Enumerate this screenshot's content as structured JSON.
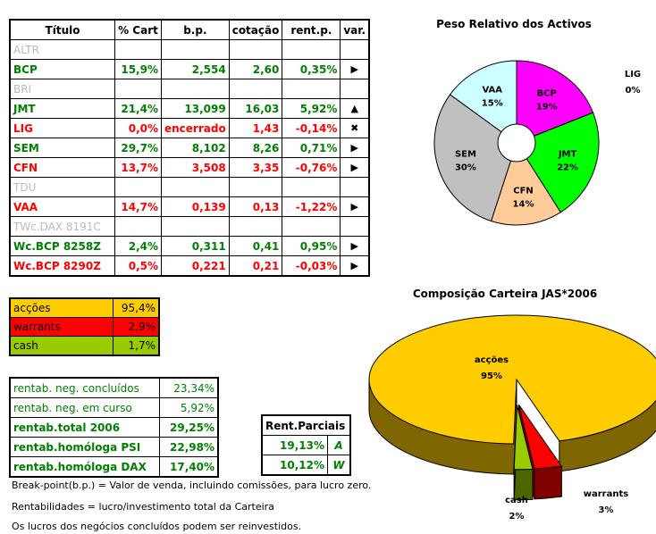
{
  "table": {
    "headers": [
      "Título",
      "% Cart",
      "b.p.",
      "cotação",
      "rent.p.",
      "var."
    ],
    "rows": [
      {
        "t": "ALTR",
        "s": "gray"
      },
      {
        "t": "BCP",
        "p": "15,9%",
        "bp": "2,554",
        "c": "2,60",
        "r": "0,35%",
        "v": "▶",
        "s": "g"
      },
      {
        "t": "BRI",
        "s": "gray"
      },
      {
        "t": "JMT",
        "p": "21,4%",
        "bp": "13,099",
        "c": "16,03",
        "r": "5,92%",
        "v": "▲",
        "s": "g"
      },
      {
        "t": "LIG",
        "p": "0,0%",
        "bp": "encerrado",
        "c": "1,43",
        "r": "-0,14%",
        "v": "✖",
        "s": "r"
      },
      {
        "t": "SEM",
        "p": "29,7%",
        "bp": "8,102",
        "c": "8,26",
        "r": "0,71%",
        "v": "▶",
        "s": "g"
      },
      {
        "t": "CFN",
        "p": "13,7%",
        "bp": "3,508",
        "c": "3,35",
        "r": "-0,76%",
        "v": "▶",
        "s": "r"
      },
      {
        "t": "TDU",
        "s": "gray"
      },
      {
        "t": "VAA",
        "p": "14,7%",
        "bp": "0,139",
        "c": "0,13",
        "r": "-1,22%",
        "v": "▶",
        "s": "r"
      },
      {
        "t": "TWc.DAX 8191C",
        "s": "gray"
      },
      {
        "t": "Wc.BCP 8258Z",
        "p": "2,4%",
        "bp": "0,311",
        "c": "0,41",
        "r": "0,95%",
        "v": "▶",
        "s": "g"
      },
      {
        "t": "Wc.BCP 8290Z",
        "p": "0,5%",
        "bp": "0,221",
        "c": "0,21",
        "r": "-0,03%",
        "v": "▶",
        "s": "r"
      }
    ]
  },
  "allocation": [
    {
      "label": "acções",
      "value": "95,4%",
      "color": "#ffcc00"
    },
    {
      "label": "warrants",
      "value": "2,9%",
      "color": "#ff0000"
    },
    {
      "label": "cash",
      "value": "1,7%",
      "color": "#99cc00"
    }
  ],
  "rentab": [
    {
      "label": "rentab. neg. concluídos",
      "value": "23,34%",
      "bold": false
    },
    {
      "label": "rentab. neg. em curso",
      "value": "5,92%",
      "bold": false
    },
    {
      "label": "rentab.total 2006",
      "value": "29,25%",
      "bold": true
    },
    {
      "label": "rentab.homóloga PSI",
      "value": "22,98%",
      "bold": true
    },
    {
      "label": "rentab.homóloga DAX",
      "value": "17,40%",
      "bold": true
    }
  ],
  "parciais": {
    "title": "Rent.Parciais",
    "rows": [
      {
        "value": "19,13%",
        "code": "A"
      },
      {
        "value": "10,12%",
        "code": "W"
      }
    ]
  },
  "notes": [
    "Break-point(b.p.) = Valor de venda, incluindo comissões, para lucro zero.",
    "Rentabilidades = lucro/investimento total da Carteira",
    "Os lucros dos negócios concluídos podem ser reinvestidos."
  ],
  "chart_data": [
    {
      "type": "pie",
      "title": "Peso Relativo dos Activos",
      "style": "donut",
      "slices": [
        {
          "label": "BCP",
          "value": 19,
          "color": "#ff00ff"
        },
        {
          "label": "JMT",
          "value": 22,
          "color": "#00ff00"
        },
        {
          "label": "CFN",
          "value": 14,
          "color": "#ffcc99"
        },
        {
          "label": "SEM",
          "value": 30,
          "color": "#c0c0c0"
        },
        {
          "label": "VAA",
          "value": 15,
          "color": "#ccffff"
        },
        {
          "label": "LIG",
          "value": 0,
          "color": "#ffffff"
        }
      ]
    },
    {
      "type": "pie",
      "title": "Composição Carteira JAS*2006",
      "style": "3d-exploded",
      "slices": [
        {
          "label": "acções",
          "value": 95,
          "color": "#ffcc00"
        },
        {
          "label": "warrants",
          "value": 3,
          "color": "#ff0000"
        },
        {
          "label": "cash",
          "value": 2,
          "color": "#99cc00"
        }
      ]
    }
  ]
}
